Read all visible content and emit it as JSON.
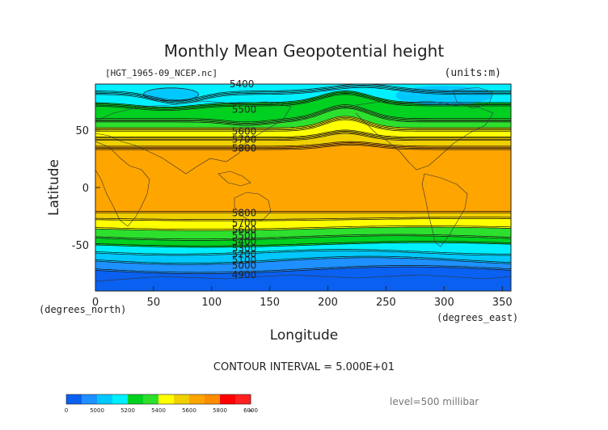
{
  "chart_data": {
    "type": "contour",
    "title": "Monthly Mean Geopotential height",
    "source_file": "[HGT_1965-09_NCEP.nc]",
    "units": "(units:m)",
    "xlabel": "Longitude",
    "x_unit": "(degrees_east)",
    "ylabel": "Latitude",
    "y_unit": "(degrees_north)",
    "xlim": [
      0,
      357.5
    ],
    "ylim": [
      -90,
      90
    ],
    "x_ticks": [
      0,
      50,
      100,
      150,
      200,
      250,
      300,
      350
    ],
    "y_ticks": [
      50,
      0,
      -50
    ],
    "contour_interval_text": "CONTOUR INTERVAL = 5.000E+01",
    "level_text": "level=500 millibar",
    "contour_labels": [
      {
        "text": "5400",
        "lon": 126,
        "lat": 90
      },
      {
        "text": "5500",
        "lon": 128,
        "lat": 68
      },
      {
        "text": "5600",
        "lon": 128,
        "lat": 49
      },
      {
        "text": "5700",
        "lon": 128,
        "lat": 42
      },
      {
        "text": "5800",
        "lon": 128,
        "lat": 34
      },
      {
        "text": "5800",
        "lon": 128,
        "lat": -22
      },
      {
        "text": "5700",
        "lon": 128,
        "lat": -31
      },
      {
        "text": "5600",
        "lon": 128,
        "lat": -37
      },
      {
        "text": "5500",
        "lon": 128,
        "lat": -42
      },
      {
        "text": "5400",
        "lon": 128,
        "lat": -47
      },
      {
        "text": "5300",
        "lon": 128,
        "lat": -53
      },
      {
        "text": "5200",
        "lon": 128,
        "lat": -58
      },
      {
        "text": "5100",
        "lon": 128,
        "lat": -63
      },
      {
        "text": "5000",
        "lon": 128,
        "lat": -68
      },
      {
        "text": "4900",
        "lon": 128,
        "lat": -76
      }
    ],
    "colorbar": {
      "labels": [
        "0",
        "5000",
        "5200",
        "5400",
        "5600",
        "5800",
        "6000",
        "∞"
      ],
      "colors": [
        "#0a60f0",
        "#1e90ff",
        "#00c8ff",
        "#00f0ff",
        "#00d020",
        "#2de02d",
        "#ffff00",
        "#f0d000",
        "#ffa500",
        "#ff8c00",
        "#ff0000",
        "#ff2020"
      ]
    },
    "bands": [
      {
        "color": "#0a60f0"
      },
      {
        "color": "#1e90ff"
      },
      {
        "color": "#00c8ff"
      },
      {
        "color": "#00f0ff"
      },
      {
        "color": "#00d020"
      },
      {
        "color": "#2de02d"
      },
      {
        "color": "#ffff00"
      },
      {
        "color": "#f0d000"
      },
      {
        "color": "#ffa500"
      }
    ]
  }
}
